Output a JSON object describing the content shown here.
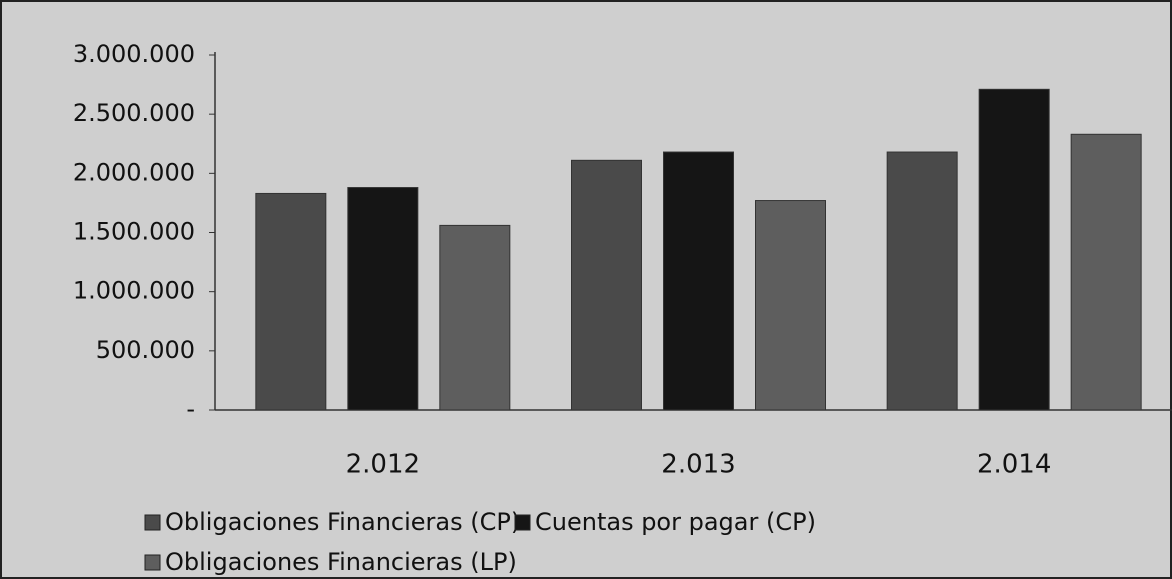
{
  "chart_data": {
    "type": "bar",
    "categories": [
      "2.012",
      "2.013",
      "2.014"
    ],
    "series": [
      {
        "name": "Obligaciones Financieras (CP)",
        "color": "#4a4a4a",
        "values": [
          1830000,
          2110000,
          2180000
        ]
      },
      {
        "name": "Cuentas por pagar (CP)",
        "color": "#151515",
        "values": [
          1880000,
          2180000,
          2710000
        ]
      },
      {
        "name": "Obligaciones Financieras (LP)",
        "color": "#5e5e5e",
        "values": [
          1560000,
          1770000,
          2330000
        ]
      }
    ],
    "ylim": [
      0,
      3000000
    ],
    "yticks": [
      {
        "value": 0,
        "label": "-"
      },
      {
        "value": 500000,
        "label": "500.000"
      },
      {
        "value": 1000000,
        "label": "1.000.000"
      },
      {
        "value": 1500000,
        "label": "1.500.000"
      },
      {
        "value": 2000000,
        "label": "2.000.000"
      },
      {
        "value": 2500000,
        "label": "2.500.000"
      },
      {
        "value": 3000000,
        "label": "3.000.000"
      }
    ],
    "grid": false,
    "legend": "bottom"
  }
}
